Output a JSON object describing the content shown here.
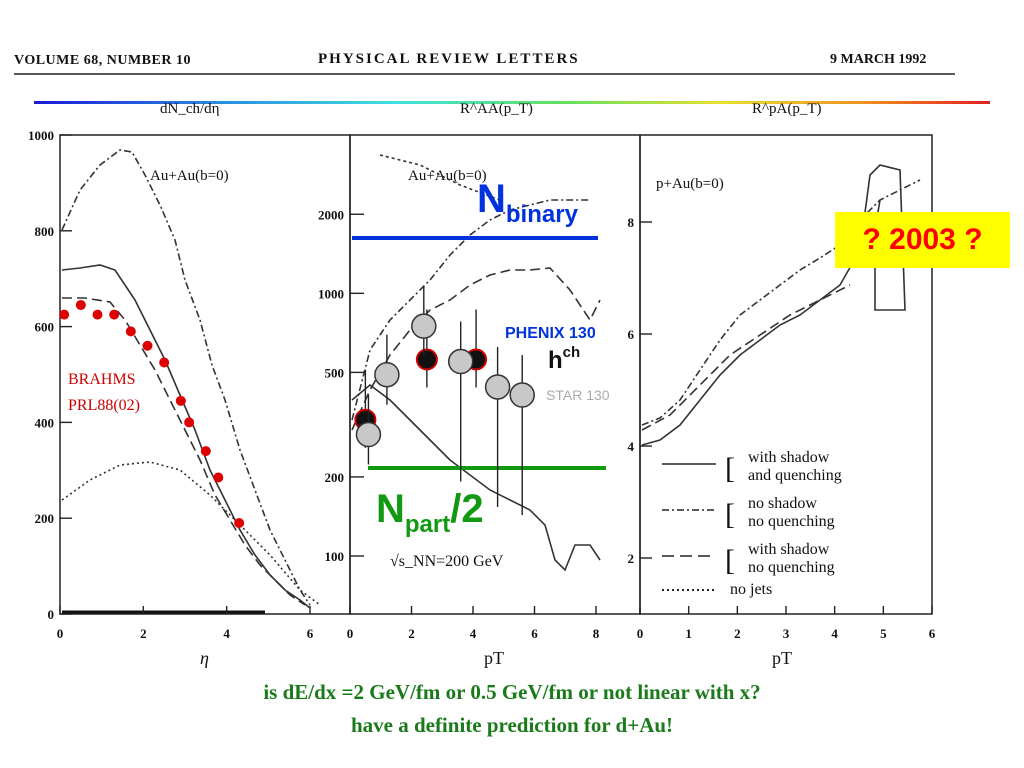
{
  "header": {
    "volume": "VOLUME 68, NUMBER 10",
    "journal": "PHYSICAL REVIEW LETTERS",
    "date": "9 MARCH 1992"
  },
  "colors": {
    "binary_line": "#0033dd",
    "part_line": "#119911",
    "brahms": "#dd0000",
    "badge_bg": "#ffff00",
    "badge_text": "#ff0000",
    "notes": "#1a7a1a"
  },
  "badge": "? 2003 ?",
  "notes": {
    "line1": "is dE/dx =2 GeV/fm or 0.5 GeV/fm or not linear with x?",
    "line2": "have a definite prediction for d+Au!"
  },
  "chart_data": [
    {
      "type": "line",
      "panel_heading": "dN_ch/dη",
      "label": "Au+Au(b=0)",
      "xlabel": "η",
      "xlim": [
        0,
        6
      ],
      "ylim": [
        0,
        1000
      ],
      "xticks": [
        "0",
        "2",
        "4",
        "6"
      ],
      "yticks": [
        "0",
        "200",
        "400",
        "600",
        "800",
        "1000"
      ],
      "annotation": [
        "BRAHMS",
        "PRL88(02)"
      ],
      "series": [
        {
          "name": "BRAHMS",
          "style": "points",
          "x": [
            0.1,
            0.5,
            0.9,
            1.3,
            1.7,
            2.1,
            2.5,
            2.9,
            3.1,
            3.5,
            3.8,
            4.3
          ],
          "y": [
            625,
            645,
            625,
            625,
            590,
            560,
            525,
            445,
            400,
            340,
            285,
            190
          ]
        }
      ]
    },
    {
      "type": "line",
      "panel_heading": "R^AA(p_T)",
      "label": "Au+Au(b=0)",
      "xlabel": "pT",
      "xlim": [
        0,
        8
      ],
      "ylim_log": [
        100,
        3000
      ],
      "xticks": [
        "0",
        "2",
        "4",
        "6",
        "8"
      ],
      "yticks": [
        "100",
        "200",
        "500",
        "1000",
        "2000"
      ],
      "energy": "√s_NN=200 GeV",
      "N_binary": {
        "label": "N",
        "sub": "binary",
        "y": 1300
      },
      "N_part": {
        "label": "N",
        "sub": "part",
        "suffix": "/2",
        "y": 200
      },
      "series": [
        {
          "name": "PHENIX 130",
          "style": "black-points",
          "x": [
            0.5,
            2.5,
            4.1
          ],
          "y": [
            330,
            560,
            560
          ]
        },
        {
          "name": "STAR 130",
          "style": "grey-points",
          "x": [
            0.6,
            1.2,
            2.4,
            3.6,
            4.8,
            5.6
          ],
          "y": [
            290,
            490,
            750,
            550,
            440,
            410
          ]
        }
      ],
      "hch": "h",
      "hch_sup": "ch"
    },
    {
      "type": "line",
      "panel_heading": "R^pA(p_T)",
      "label": "p+Au(b=0)",
      "xlabel": "pT",
      "xlim": [
        0,
        6
      ],
      "ylim": [
        0,
        10
      ],
      "xticks": [
        "0",
        "1",
        "2",
        "3",
        "4",
        "5",
        "6"
      ],
      "yticks": [
        "2",
        "4",
        "6",
        "8"
      ],
      "legend": [
        {
          "style": "solid",
          "bracket": "[",
          "text1": "with shadow",
          "text2": "and quenching"
        },
        {
          "style": "dashdot",
          "bracket": "[",
          "text1": "no shadow",
          "text2": "no quenching"
        },
        {
          "style": "dash",
          "bracket": "[",
          "text1": "with shadow",
          "text2": "no quenching"
        },
        {
          "style": "dotted",
          "text1": "no jets"
        }
      ]
    }
  ]
}
